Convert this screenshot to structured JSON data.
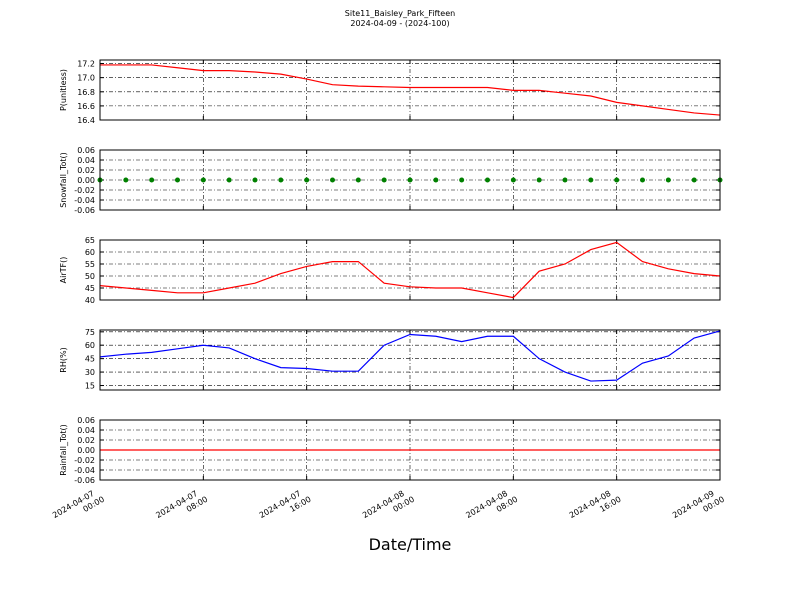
{
  "chart_data": [
    {
      "type": "line",
      "title": "Site11_Baisley_Park_Fifteen",
      "subtitle": "2024-04-09 - (2024-100)",
      "ylabel": "P(unitless)",
      "color": "#ff0000",
      "x": [
        "2024-04-07 00:00",
        "2024-04-07 02:00",
        "2024-04-07 04:00",
        "2024-04-07 06:00",
        "2024-04-07 08:00",
        "2024-04-07 10:00",
        "2024-04-07 12:00",
        "2024-04-07 14:00",
        "2024-04-07 16:00",
        "2024-04-07 18:00",
        "2024-04-07 20:00",
        "2024-04-07 22:00",
        "2024-04-08 00:00",
        "2024-04-08 02:00",
        "2024-04-08 04:00",
        "2024-04-08 06:00",
        "2024-04-08 08:00",
        "2024-04-08 10:00",
        "2024-04-08 12:00",
        "2024-04-08 14:00",
        "2024-04-08 16:00",
        "2024-04-08 18:00",
        "2024-04-08 20:00",
        "2024-04-08 22:00",
        "2024-04-09 00:00"
      ],
      "values": [
        17.18,
        17.18,
        17.18,
        17.14,
        17.1,
        17.1,
        17.08,
        17.05,
        16.98,
        16.9,
        16.88,
        16.87,
        16.86,
        16.86,
        16.86,
        16.86,
        16.82,
        16.82,
        16.78,
        16.74,
        16.65,
        16.6,
        16.55,
        16.5,
        16.47
      ],
      "ylim": [
        16.4,
        17.25
      ],
      "yticks": [
        16.4,
        16.6,
        16.8,
        {
          "value": 17,
          "label": "17.0"
        },
        17.2
      ],
      "grid": true
    },
    {
      "type": "scatter",
      "ylabel": "Snowfall_Tot()",
      "color": "#008000",
      "x": [
        "2024-04-07 00:00",
        "2024-04-07 02:00",
        "2024-04-07 04:00",
        "2024-04-07 06:00",
        "2024-04-07 08:00",
        "2024-04-07 10:00",
        "2024-04-07 12:00",
        "2024-04-07 14:00",
        "2024-04-07 16:00",
        "2024-04-07 18:00",
        "2024-04-07 20:00",
        "2024-04-07 22:00",
        "2024-04-08 00:00",
        "2024-04-08 02:00",
        "2024-04-08 04:00",
        "2024-04-08 06:00",
        "2024-04-08 08:00",
        "2024-04-08 10:00",
        "2024-04-08 12:00",
        "2024-04-08 14:00",
        "2024-04-08 16:00",
        "2024-04-08 18:00",
        "2024-04-08 20:00",
        "2024-04-08 22:00",
        "2024-04-09 00:00"
      ],
      "values": [
        0,
        0,
        0,
        0,
        0,
        0,
        0,
        0,
        0,
        0,
        0,
        0,
        0,
        0,
        0,
        0,
        0,
        0,
        0,
        0,
        0,
        0,
        0,
        0,
        0
      ],
      "ylim": [
        -0.06,
        0.06
      ],
      "yticks": [
        -0.06,
        -0.04,
        -0.02,
        {
          "value": 0,
          "label": "0.00"
        },
        0.02,
        0.04,
        0.06
      ],
      "grid": true
    },
    {
      "type": "line",
      "ylabel": "AirTF()",
      "color": "#ff0000",
      "x": [
        "2024-04-07 00:00",
        "2024-04-07 02:00",
        "2024-04-07 04:00",
        "2024-04-07 06:00",
        "2024-04-07 08:00",
        "2024-04-07 10:00",
        "2024-04-07 12:00",
        "2024-04-07 14:00",
        "2024-04-07 16:00",
        "2024-04-07 18:00",
        "2024-04-07 20:00",
        "2024-04-07 22:00",
        "2024-04-08 00:00",
        "2024-04-08 02:00",
        "2024-04-08 04:00",
        "2024-04-08 06:00",
        "2024-04-08 08:00",
        "2024-04-08 10:00",
        "2024-04-08 12:00",
        "2024-04-08 14:00",
        "2024-04-08 16:00",
        "2024-04-08 18:00",
        "2024-04-08 20:00",
        "2024-04-08 22:00",
        "2024-04-09 00:00"
      ],
      "values": [
        46,
        45,
        44,
        43,
        43,
        45,
        47,
        51,
        54,
        56,
        56,
        47,
        45.5,
        45,
        45,
        43,
        41,
        52,
        55,
        61,
        64,
        56,
        53,
        51,
        50
      ],
      "ylim": [
        40,
        65
      ],
      "yticks": [
        40,
        45,
        50,
        55,
        60,
        65
      ],
      "grid": true
    },
    {
      "type": "line",
      "ylabel": "RH(%)",
      "color": "#0000ff",
      "x": [
        "2024-04-07 00:00",
        "2024-04-07 02:00",
        "2024-04-07 04:00",
        "2024-04-07 06:00",
        "2024-04-07 08:00",
        "2024-04-07 10:00",
        "2024-04-07 12:00",
        "2024-04-07 14:00",
        "2024-04-07 16:00",
        "2024-04-07 18:00",
        "2024-04-07 20:00",
        "2024-04-07 22:00",
        "2024-04-08 00:00",
        "2024-04-08 02:00",
        "2024-04-08 04:00",
        "2024-04-08 06:00",
        "2024-04-08 08:00",
        "2024-04-08 10:00",
        "2024-04-08 12:00",
        "2024-04-08 14:00",
        "2024-04-08 16:00",
        "2024-04-08 18:00",
        "2024-04-08 20:00",
        "2024-04-08 22:00",
        "2024-04-09 00:00"
      ],
      "values": [
        47,
        50,
        52,
        56,
        60,
        57,
        45,
        35,
        34,
        31,
        31,
        60,
        72,
        70,
        64,
        70,
        70,
        45,
        30,
        20,
        21,
        40,
        48,
        68,
        76
      ],
      "ylim": [
        10,
        77
      ],
      "yticks": [
        15,
        30,
        45,
        60,
        75
      ],
      "grid": true
    },
    {
      "type": "line",
      "ylabel": "Rainfall_Tot()",
      "xlabel": "Date/Time",
      "color": "#ff0000",
      "x": [
        "2024-04-07 00:00",
        "2024-04-07 02:00",
        "2024-04-07 04:00",
        "2024-04-07 06:00",
        "2024-04-07 08:00",
        "2024-04-07 10:00",
        "2024-04-07 12:00",
        "2024-04-07 14:00",
        "2024-04-07 16:00",
        "2024-04-07 18:00",
        "2024-04-07 20:00",
        "2024-04-07 22:00",
        "2024-04-08 00:00",
        "2024-04-08 02:00",
        "2024-04-08 04:00",
        "2024-04-08 06:00",
        "2024-04-08 08:00",
        "2024-04-08 10:00",
        "2024-04-08 12:00",
        "2024-04-08 14:00",
        "2024-04-08 16:00",
        "2024-04-08 18:00",
        "2024-04-08 20:00",
        "2024-04-08 22:00",
        "2024-04-09 00:00"
      ],
      "values": [
        0,
        0,
        0,
        0,
        0,
        0,
        0,
        0,
        0,
        0,
        0,
        0,
        0,
        0,
        0,
        0,
        0,
        0,
        0,
        0,
        0,
        0,
        0,
        0,
        0
      ],
      "ylim": [
        -0.06,
        0.06
      ],
      "yticks": [
        -0.06,
        -0.04,
        -0.02,
        {
          "value": 0,
          "label": "0.00"
        },
        0.02,
        0.04,
        0.06
      ],
      "grid": true,
      "xlim": [
        "2024-04-07 00:00",
        "2024-04-09 00:00"
      ],
      "xticks": [
        "2024-04-07 00:00",
        "2024-04-07 08:00",
        "2024-04-07 16:00",
        "2024-04-08 00:00",
        "2024-04-08 08:00",
        "2024-04-08 16:00",
        "2024-04-09 00:00"
      ]
    }
  ]
}
